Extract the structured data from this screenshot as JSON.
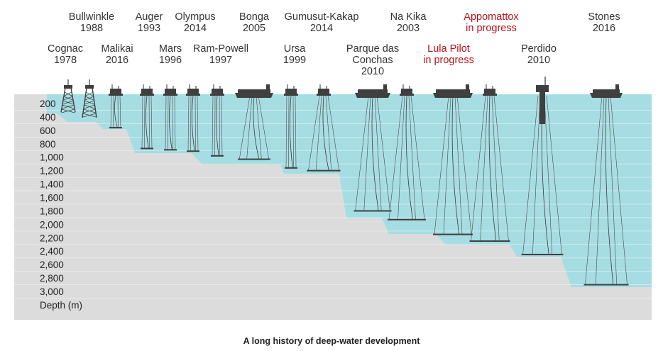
{
  "caption": "A long history of deep-water development",
  "depth_axis": {
    "unit_label": "Depth (m)",
    "ticks": [
      "200",
      "400",
      "600",
      "800",
      "1,000",
      "1,200",
      "1,400",
      "1,600",
      "1,800",
      "2,000",
      "2,200",
      "2,400",
      "2,600",
      "2,800",
      "3,000"
    ]
  },
  "platforms": [
    {
      "name": "Cognac",
      "status": "1978",
      "kind": "jacket",
      "depth_m": 330
    },
    {
      "name": "Bullwinkle",
      "status": "1988",
      "kind": "jacket",
      "depth_m": 410
    },
    {
      "name": "Malikai",
      "status": "2016",
      "kind": "tlp",
      "depth_m": 560
    },
    {
      "name": "Auger",
      "status": "1993",
      "kind": "tlp",
      "depth_m": 870
    },
    {
      "name": "Mars",
      "status": "1996",
      "kind": "tlp",
      "depth_m": 890
    },
    {
      "name": "Olympus",
      "status": "2014",
      "kind": "tlp",
      "depth_m": 910
    },
    {
      "name": "Ram-Powell",
      "status": "1997",
      "kind": "tlp",
      "depth_m": 980
    },
    {
      "name": "Bonga",
      "status": "2005",
      "kind": "fpso",
      "depth_m": 1030
    },
    {
      "name": "Ursa",
      "status": "1999",
      "kind": "tlp",
      "depth_m": 1160
    },
    {
      "name": "Gumusut-Kakap",
      "status": "2014",
      "kind": "semi",
      "depth_m": 1200
    },
    {
      "name": "Parque das Conchas",
      "status": "2010",
      "kind": "fpso",
      "depth_m": 1800
    },
    {
      "name": "Na Kika",
      "status": "2003",
      "kind": "semi",
      "depth_m": 1930
    },
    {
      "name": "Lula Pilot",
      "status": "in progress",
      "kind": "fpso",
      "depth_m": 2150,
      "highlight": true
    },
    {
      "name": "Appomattox",
      "status": "in progress",
      "kind": "semi",
      "depth_m": 2250,
      "highlight": true
    },
    {
      "name": "Perdido",
      "status": "2010",
      "kind": "spar",
      "depth_m": 2450
    },
    {
      "name": "Stones",
      "status": "2016",
      "kind": "fpso",
      "depth_m": 2900
    }
  ],
  "colors": {
    "water": "#a6dde3",
    "seabed": "#dcdcdc",
    "structure": "#3f3f3f",
    "highlight": "#b5121b",
    "gridline": "#ffffff"
  }
}
